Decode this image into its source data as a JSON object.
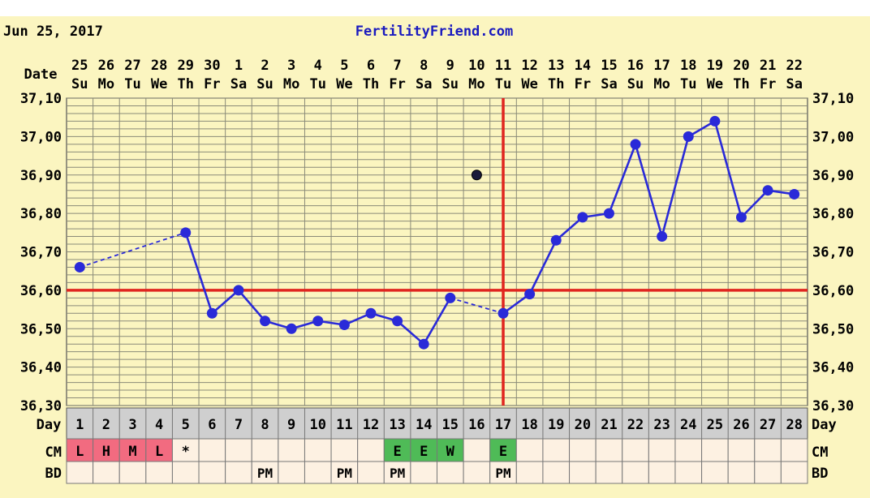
{
  "header": {
    "date": "Jun 25, 2017",
    "site": "FertilityFriend.com"
  },
  "colors": {
    "background": "#fbf5c0",
    "grid": "#8a8a78",
    "series": "#2a2ad8",
    "coverline": "#e0251f",
    "day_row_bg": "#cfcfcf",
    "cm_red": "#f26b80",
    "cm_green": "#4fbb57",
    "row_fill": "#fdf1e2"
  },
  "chart_data": {
    "type": "line",
    "title": "",
    "row_label_date": "Date",
    "row_label_day": "Day",
    "row_label_cm": "CM",
    "row_label_bd": "BD",
    "dates": [
      "25",
      "26",
      "27",
      "28",
      "29",
      "30",
      "1",
      "2",
      "3",
      "4",
      "5",
      "6",
      "7",
      "8",
      "9",
      "10",
      "11",
      "12",
      "13",
      "14",
      "15",
      "16",
      "17",
      "18",
      "19",
      "20",
      "21",
      "22"
    ],
    "weekdays": [
      "Su",
      "Mo",
      "Tu",
      "We",
      "Th",
      "Fr",
      "Sa",
      "Su",
      "Mo",
      "Tu",
      "We",
      "Th",
      "Fr",
      "Sa",
      "Su",
      "Mo",
      "Tu",
      "We",
      "Th",
      "Fr",
      "Sa",
      "Su",
      "Mo",
      "Tu",
      "We",
      "Th",
      "Fr",
      "Sa"
    ],
    "cycle_days": [
      "1",
      "2",
      "3",
      "4",
      "5",
      "6",
      "7",
      "8",
      "9",
      "10",
      "11",
      "12",
      "13",
      "14",
      "15",
      "16",
      "17",
      "18",
      "19",
      "20",
      "21",
      "22",
      "23",
      "24",
      "25",
      "26",
      "27",
      "28"
    ],
    "y_ticks": [
      "37,10",
      "37,00",
      "36,90",
      "36,80",
      "36,70",
      "36,60",
      "36,50",
      "36,40",
      "36,30"
    ],
    "ylim": [
      36.3,
      37.1
    ],
    "temperatures": [
      36.66,
      null,
      null,
      null,
      36.75,
      36.54,
      36.6,
      36.52,
      36.5,
      36.52,
      36.51,
      36.54,
      36.52,
      36.46,
      36.58,
      36.9,
      36.54,
      36.59,
      36.73,
      36.79,
      36.8,
      36.98,
      36.74,
      37.0,
      37.04,
      36.79,
      36.86,
      36.85
    ],
    "discarded_day": 16,
    "dashed_segments": [
      [
        1,
        5
      ],
      [
        15,
        17
      ]
    ],
    "coverline": 36.6,
    "ovulation_day": 17,
    "cm": [
      "L",
      "H",
      "M",
      "L",
      "*",
      "",
      "",
      "",
      "",
      "",
      "",
      "",
      "E",
      "E",
      "W",
      "",
      "E",
      "",
      "",
      "",
      "",
      "",
      "",
      "",
      "",
      "",
      "",
      ""
    ],
    "cm_colors": [
      "red",
      "red",
      "red",
      "red",
      "",
      "",
      "",
      "",
      "",
      "",
      "",
      "",
      "green",
      "green",
      "green",
      "",
      "green",
      "",
      "",
      "",
      "",
      "",
      "",
      "",
      "",
      "",
      "",
      ""
    ],
    "bd": [
      "",
      "",
      "",
      "",
      "",
      "",
      "",
      "PM",
      "",
      "",
      "PM",
      "",
      "PM",
      "",
      "",
      "",
      "PM",
      "",
      "",
      "",
      "",
      "",
      "",
      "",
      "",
      "",
      "",
      ""
    ],
    "grid": true
  }
}
